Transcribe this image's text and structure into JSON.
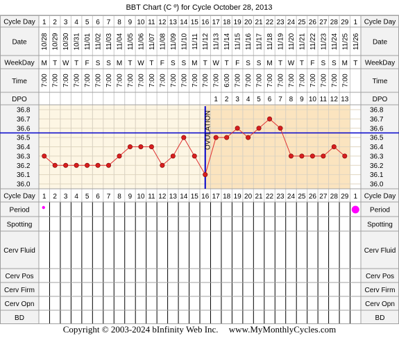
{
  "title": "BBT Chart (C º) for Cycle October 28, 2013",
  "row_labels": {
    "cycle_day": "Cycle Day",
    "date": "Date",
    "weekday": "WeekDay",
    "time": "Time",
    "dpo": "DPO",
    "period": "Period",
    "spotting": "Spotting",
    "cerv_fluid": "Cerv Fluid",
    "cerv_pos": "Cerv Pos",
    "cerv_firm": "Cerv Firm",
    "cerv_opn": "Cerv Opn",
    "bd": "BD"
  },
  "ovulation_label": "OVULATION",
  "footer": {
    "copyright": "Copyright © 2003-2024 bInfinity Web Inc.",
    "site": "www.MyMonthlyCycles.com"
  },
  "colors": {
    "pre_ovulation_bg": "#fdf6e4",
    "post_ovulation_bg": "#fbe4bf",
    "coverline": "#0000cc",
    "line": "#e03030",
    "point": "#d81e1e",
    "period_marker": "#ff00ff",
    "grid": "#c8c8c8",
    "label_bg": "#f2f2f2"
  },
  "chart_data": {
    "type": "line",
    "title": "BBT Chart (C º) for Cycle October 28, 2013",
    "cycle_days": [
      "1",
      "2",
      "3",
      "4",
      "5",
      "6",
      "7",
      "8",
      "9",
      "10",
      "11",
      "12",
      "13",
      "14",
      "15",
      "16",
      "17",
      "18",
      "19",
      "20",
      "21",
      "22",
      "23",
      "24",
      "25",
      "26",
      "27",
      "28",
      "29",
      "1"
    ],
    "dates": [
      "10/28",
      "10/29",
      "10/30",
      "10/31",
      "11/01",
      "11/02",
      "11/03",
      "11/04",
      "11/05",
      "11/06",
      "11/07",
      "11/08",
      "11/09",
      "11/10",
      "11/11",
      "11/12",
      "11/13",
      "11/14",
      "11/15",
      "11/16",
      "11/17",
      "11/18",
      "11/19",
      "11/20",
      "11/21",
      "11/22",
      "11/23",
      "11/24",
      "11/25",
      "11/26"
    ],
    "weekdays": [
      "M",
      "T",
      "W",
      "T",
      "F",
      "S",
      "S",
      "M",
      "T",
      "W",
      "T",
      "F",
      "S",
      "S",
      "M",
      "T",
      "W",
      "T",
      "F",
      "S",
      "S",
      "M",
      "T",
      "W",
      "T",
      "F",
      "S",
      "S",
      "M",
      "T"
    ],
    "times": [
      "7:00",
      "7:00",
      "7:00",
      "7:00",
      "7:00",
      "7:00",
      "7:00",
      "7:00",
      "7:00",
      "7:00",
      "7:00",
      "7:00",
      "7:00",
      "7:00",
      "7:00",
      "7:00",
      "7:00",
      "6:00",
      "7:00",
      "7:00",
      "7:00",
      "7:00",
      "7:00",
      "7:00",
      "7:00",
      "7:00",
      "7:00",
      "7:00",
      "7:00",
      ""
    ],
    "dpo": [
      "",
      "",
      "",
      "",
      "",
      "",
      "",
      "",
      "",
      "",
      "",
      "",
      "",
      "",
      "",
      "",
      "1",
      "2",
      "3",
      "4",
      "5",
      "6",
      "7",
      "8",
      "9",
      "10",
      "11",
      "12",
      "13",
      ""
    ],
    "temperatures": [
      36.3,
      36.2,
      36.2,
      36.2,
      36.2,
      36.2,
      36.2,
      36.3,
      36.4,
      36.4,
      36.4,
      36.2,
      36.3,
      36.5,
      36.3,
      36.1,
      36.5,
      36.5,
      36.6,
      36.5,
      36.6,
      36.7,
      36.6,
      36.3,
      36.3,
      36.3,
      36.3,
      36.4,
      36.3,
      null
    ],
    "y_ticks": [
      "36.8",
      "36.7",
      "36.6",
      "36.5",
      "36.4",
      "36.3",
      "36.2",
      "36.1",
      "36.0"
    ],
    "ylim": [
      36.0,
      36.8
    ],
    "coverline": 36.55,
    "ovulation_day_index": 15,
    "period_days": [
      {
        "index": 0,
        "size": "small"
      },
      {
        "index": 29,
        "size": "large"
      }
    ],
    "grid": true
  }
}
